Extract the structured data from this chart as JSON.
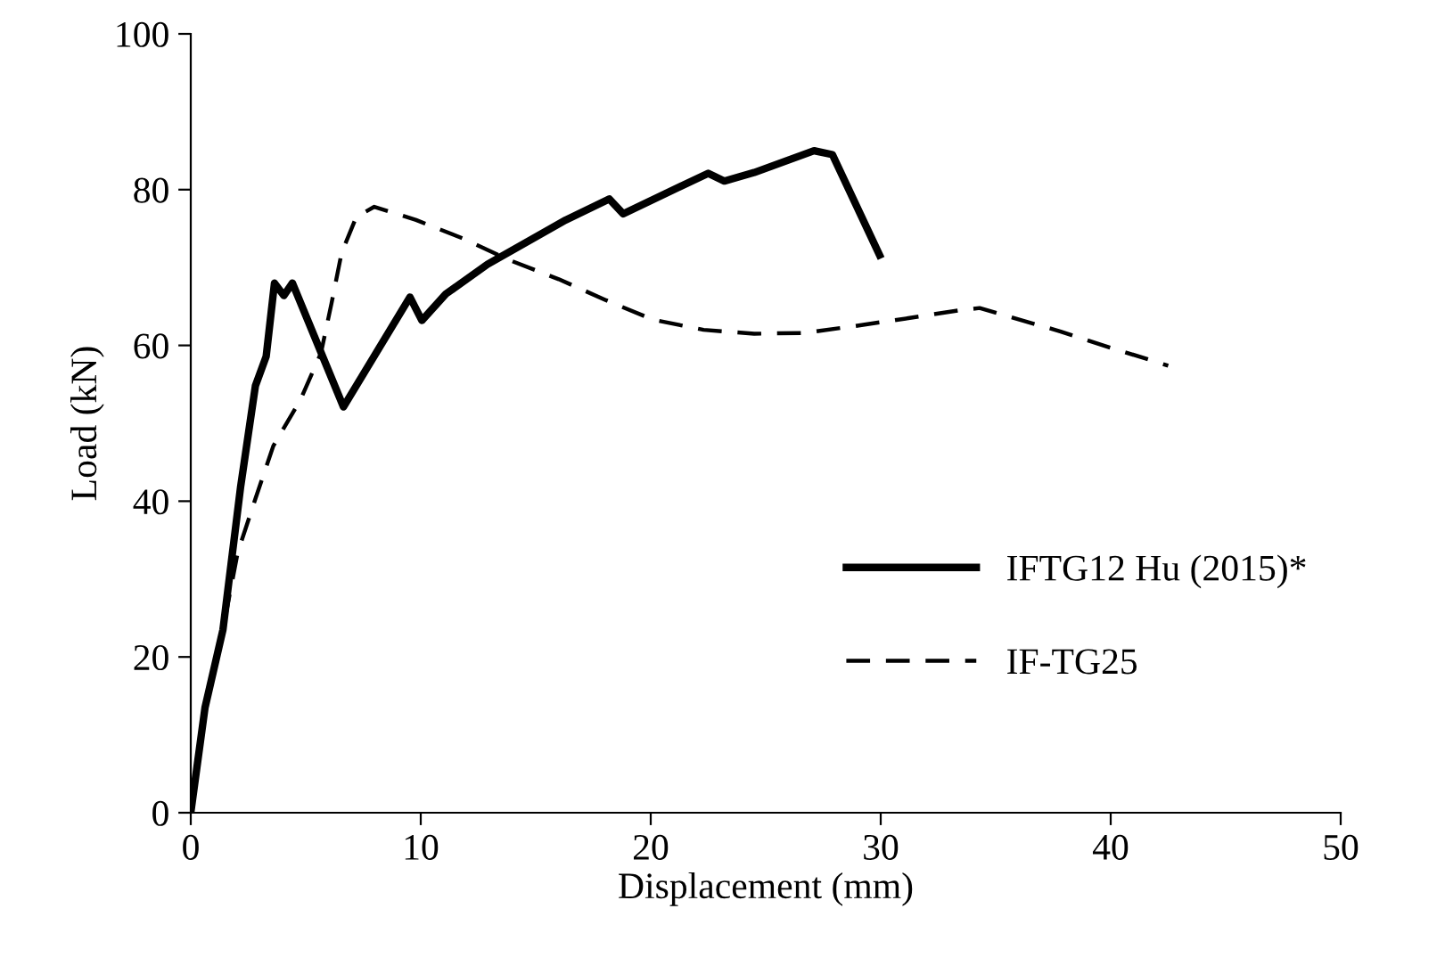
{
  "chart_data": {
    "type": "line",
    "xlabel": "Displacement (mm)",
    "ylabel": "Load (kN)",
    "xlim": [
      0,
      50
    ],
    "ylim": [
      0,
      100
    ],
    "xticks": [
      0,
      10,
      20,
      30,
      40,
      50
    ],
    "yticks": [
      0,
      20,
      40,
      60,
      80,
      100
    ],
    "grid": false,
    "legend": "right",
    "marker": "none",
    "series": [
      {
        "name": "IFTG12 Hu (2015)*",
        "color": "#000000",
        "line_style": "solid",
        "x": [
          0,
          0.62,
          1.4,
          2.17,
          2.81,
          3.28,
          3.64,
          4.05,
          4.42,
          6.64,
          9.53,
          10.05,
          11.09,
          12.9,
          16.3,
          18.2,
          18.8,
          22.5,
          23.2,
          24.5,
          27.1,
          27.9,
          29.95
        ],
        "values": [
          0,
          13.5,
          23.5,
          41.9,
          54.8,
          58.6,
          68,
          66.4,
          68,
          52.1,
          66.2,
          63.2,
          66.6,
          70.4,
          76.1,
          78.8,
          76.9,
          82.1,
          81.1,
          82.2,
          85,
          84.5,
          71.6
        ]
      },
      {
        "name": "IF-TG25",
        "color": "#000000",
        "line_style": "dashed",
        "x": [
          0,
          0.62,
          1.4,
          2.04,
          2.81,
          3.59,
          4.75,
          5.66,
          6.12,
          6.56,
          7.2,
          7.98,
          9.8,
          11.86,
          13.9,
          16,
          18.06,
          20.1,
          22.3,
          24.5,
          26.7,
          28.9,
          31.2,
          33.4,
          34.3,
          37.8,
          40,
          42.5
        ],
        "values": [
          0,
          13.5,
          23.5,
          33.4,
          40.3,
          47.1,
          52.9,
          59,
          65.4,
          71.9,
          76.5,
          77.8,
          76.1,
          73.7,
          70.9,
          68.5,
          65.8,
          63.3,
          62,
          61.5,
          61.6,
          62.5,
          63.5,
          64.5,
          64.8,
          61.8,
          59.7,
          57.4
        ]
      }
    ]
  }
}
